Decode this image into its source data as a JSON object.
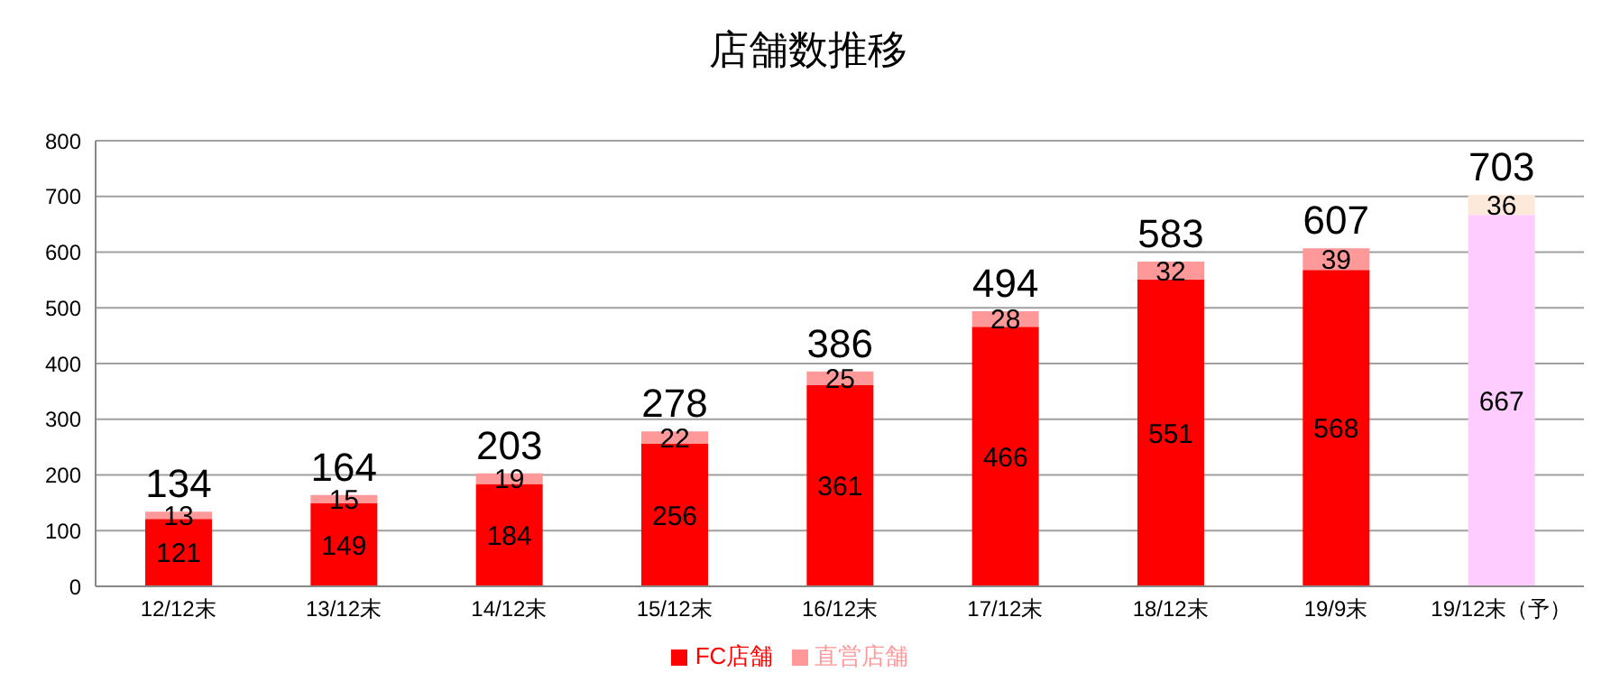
{
  "chart_data": {
    "type": "bar",
    "title": "店舗数推移",
    "categories": [
      "12/12末",
      "13/12末",
      "14/12末",
      "15/12末",
      "16/12末",
      "17/12末",
      "18/12末",
      "19/9末",
      "19/12末（予）"
    ],
    "series": [
      {
        "name": "FC店舗",
        "color": "#ff0000",
        "colors": [
          "#ff0000",
          "#ff0000",
          "#ff0000",
          "#ff0000",
          "#ff0000",
          "#ff0000",
          "#ff0000",
          "#ff0000",
          "#ffccff"
        ],
        "values": [
          121,
          149,
          184,
          256,
          361,
          466,
          551,
          568,
          667
        ]
      },
      {
        "name": "直営店舗",
        "color": "#ff9999",
        "colors": [
          "#ff9999",
          "#ff9999",
          "#ff9999",
          "#ff9999",
          "#ff9999",
          "#ff9999",
          "#ff9999",
          "#ff9999",
          "#fde9d9"
        ],
        "values": [
          13,
          15,
          19,
          22,
          25,
          28,
          32,
          39,
          36
        ]
      }
    ],
    "stacked": true,
    "data_labels": true,
    "totals": [
      "134",
      "164",
      "203",
      "278",
      "386",
      "494",
      "583",
      "607",
      "703"
    ],
    "ylim": [
      0,
      800
    ],
    "yticks": [
      0,
      100,
      200,
      300,
      400,
      500,
      600,
      700,
      800
    ],
    "grid": "y",
    "legend": "bottom"
  }
}
